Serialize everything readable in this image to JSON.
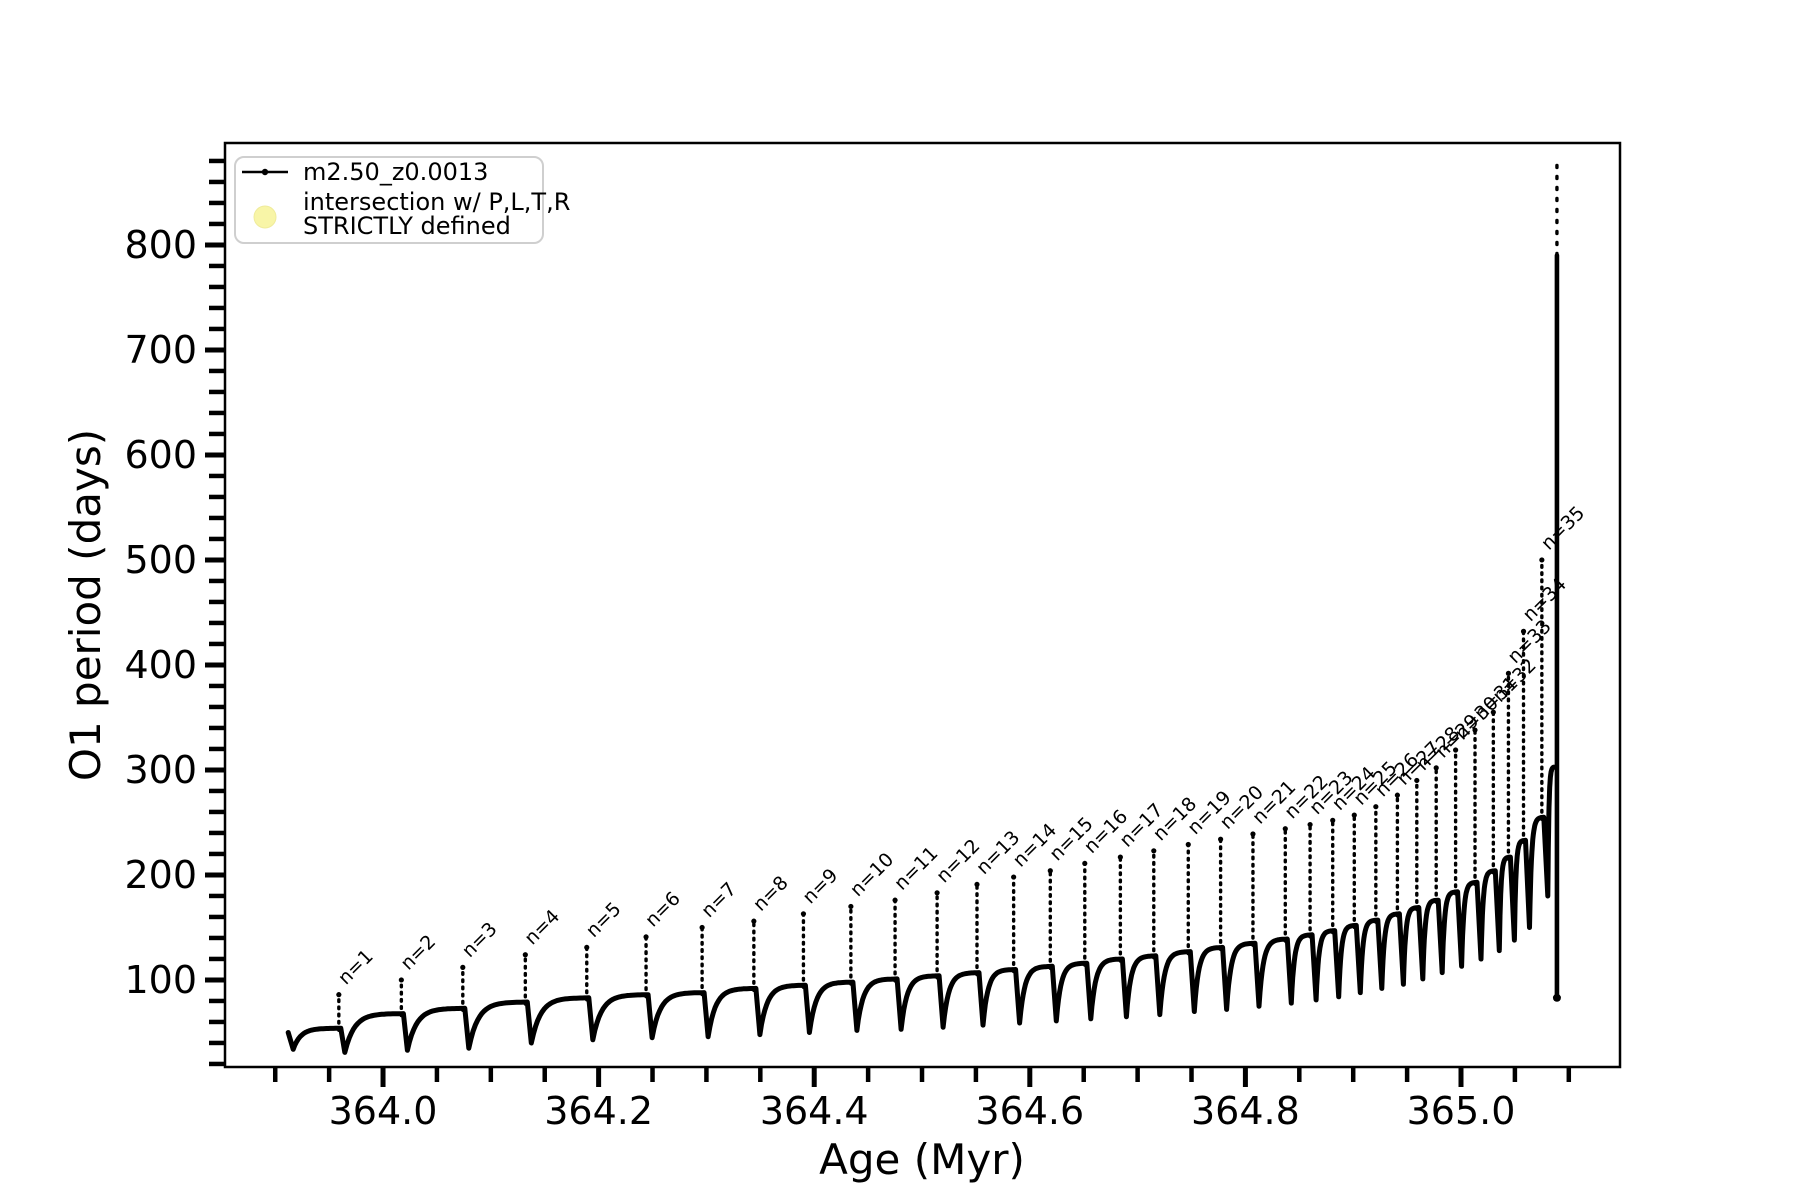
{
  "chart_data": {
    "type": "line",
    "title": "",
    "xlabel": "Age (Myr)",
    "ylabel": "O1 period (days)",
    "xlim": [
      363.8534,
      365.1475
    ],
    "ylim": [
      17.1,
      897.1
    ],
    "grid": false,
    "x_major_ticks": [
      364.0,
      364.2,
      364.4,
      364.6,
      364.8,
      365.0
    ],
    "x_tick_labels": [
      "364.0",
      "364.2",
      "364.4",
      "364.6",
      "364.8",
      "365.0"
    ],
    "x_minor_interval": 0.05,
    "y_major_ticks": [
      100,
      200,
      300,
      400,
      500,
      600,
      700,
      800
    ],
    "y_tick_labels": [
      "100",
      "200",
      "300",
      "400",
      "500",
      "600",
      "700",
      "800"
    ],
    "y_minor_interval": 20,
    "series_color": "#000000",
    "legend_position": "upper left",
    "start": {
      "age": 363.912,
      "value": 50,
      "dip": 34
    },
    "spikes": [
      {
        "n": 1,
        "label": "n=1",
        "age": 363.959,
        "peak": 86,
        "base": 54,
        "dip": 31
      },
      {
        "n": 2,
        "label": "n=2",
        "age": 364.017,
        "peak": 100,
        "base": 68,
        "dip": 33
      },
      {
        "n": 3,
        "label": "n=3",
        "age": 364.074,
        "peak": 112,
        "base": 73,
        "dip": 35
      },
      {
        "n": 4,
        "label": "n=4",
        "age": 364.132,
        "peak": 124,
        "base": 79,
        "dip": 40
      },
      {
        "n": 5,
        "label": "n=5",
        "age": 364.189,
        "peak": 131,
        "base": 83,
        "dip": 43
      },
      {
        "n": 6,
        "label": "n=6",
        "age": 364.244,
        "peak": 141,
        "base": 86,
        "dip": 45
      },
      {
        "n": 7,
        "label": "n=7",
        "age": 364.296,
        "peak": 150,
        "base": 88,
        "dip": 46
      },
      {
        "n": 8,
        "label": "n=8",
        "age": 364.344,
        "peak": 156,
        "base": 92,
        "dip": 48
      },
      {
        "n": 9,
        "label": "n=9",
        "age": 364.39,
        "peak": 163,
        "base": 95,
        "dip": 50
      },
      {
        "n": 10,
        "label": "n=10",
        "age": 364.434,
        "peak": 170,
        "base": 98,
        "dip": 52
      },
      {
        "n": 11,
        "label": "n=11",
        "age": 364.475,
        "peak": 176,
        "base": 101,
        "dip": 53
      },
      {
        "n": 12,
        "label": "n=12",
        "age": 364.514,
        "peak": 183,
        "base": 104,
        "dip": 55
      },
      {
        "n": 13,
        "label": "n=13",
        "age": 364.551,
        "peak": 191,
        "base": 107,
        "dip": 57
      },
      {
        "n": 14,
        "label": "n=14",
        "age": 364.585,
        "peak": 198,
        "base": 110,
        "dip": 59
      },
      {
        "n": 15,
        "label": "n=15",
        "age": 364.619,
        "peak": 204,
        "base": 113,
        "dip": 61
      },
      {
        "n": 16,
        "label": "n=16",
        "age": 364.651,
        "peak": 211,
        "base": 116,
        "dip": 63
      },
      {
        "n": 17,
        "label": "n=17",
        "age": 364.684,
        "peak": 217,
        "base": 120,
        "dip": 65
      },
      {
        "n": 18,
        "label": "n=18",
        "age": 364.715,
        "peak": 223,
        "base": 123,
        "dip": 67
      },
      {
        "n": 19,
        "label": "n=19",
        "age": 364.747,
        "peak": 229,
        "base": 127,
        "dip": 70
      },
      {
        "n": 20,
        "label": "n=20",
        "age": 364.777,
        "peak": 234,
        "base": 131,
        "dip": 72
      },
      {
        "n": 21,
        "label": "n=21",
        "age": 364.807,
        "peak": 239,
        "base": 135,
        "dip": 75
      },
      {
        "n": 22,
        "label": "n=22",
        "age": 364.837,
        "peak": 244,
        "base": 139,
        "dip": 78
      },
      {
        "n": 23,
        "label": "n=23",
        "age": 364.86,
        "peak": 248,
        "base": 143,
        "dip": 81
      },
      {
        "n": 24,
        "label": "n=24",
        "age": 364.881,
        "peak": 252,
        "base": 147,
        "dip": 84
      },
      {
        "n": 25,
        "label": "n=25",
        "age": 364.901,
        "peak": 257,
        "base": 152,
        "dip": 88
      },
      {
        "n": 26,
        "label": "n=26",
        "age": 364.921,
        "peak": 265,
        "base": 157,
        "dip": 92
      },
      {
        "n": 27,
        "label": "n=27",
        "age": 364.941,
        "peak": 276,
        "base": 163,
        "dip": 96
      },
      {
        "n": 28,
        "label": "n=28",
        "age": 364.959,
        "peak": 290,
        "base": 169,
        "dip": 101
      },
      {
        "n": 29,
        "label": "n=29",
        "age": 364.977,
        "peak": 302,
        "base": 176,
        "dip": 107
      },
      {
        "n": 30,
        "label": "n=30",
        "age": 364.995,
        "peak": 319,
        "base": 184,
        "dip": 113
      },
      {
        "n": 31,
        "label": "n=31",
        "age": 365.013,
        "peak": 338,
        "base": 193,
        "dip": 120
      },
      {
        "n": 32,
        "label": "n=32",
        "age": 365.03,
        "peak": 355,
        "base": 204,
        "dip": 128
      },
      {
        "n": 33,
        "label": "n=33",
        "age": 365.044,
        "peak": 392,
        "base": 217,
        "dip": 138
      },
      {
        "n": 34,
        "label": "n=34",
        "age": 365.058,
        "peak": 432,
        "base": 233,
        "dip": 150
      },
      {
        "n": 35,
        "label": "n=35",
        "age": 365.075,
        "peak": 500,
        "base": 255,
        "dip": 180
      }
    ],
    "final_plunge": {
      "age": 365.089,
      "pre_peak": 303,
      "bottom": 83,
      "solid_top": 790,
      "dotted_top": 878
    }
  },
  "legend": {
    "series_label": "m2.50_z0.0013",
    "intersection_line1": "intersection w/ P,L,T,R",
    "intersection_line2": "STRICTLY defined",
    "intersection_marker_color": "#f8f5a7",
    "series_line_color": "#000000"
  }
}
